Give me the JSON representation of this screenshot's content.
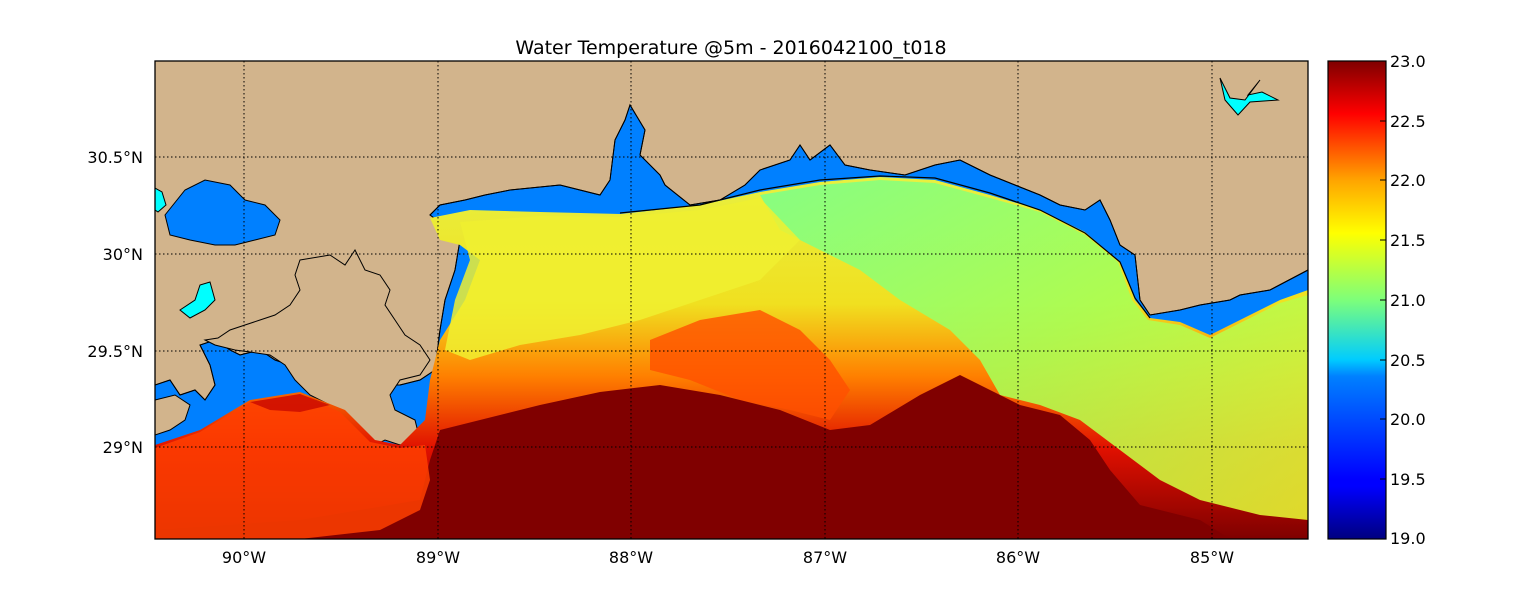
{
  "map": {
    "title": "Water Temperature @5m - 2016042100_t018",
    "lon_range": [
      -90.5,
      -84.5
    ],
    "lat_range": [
      28.55,
      31.0
    ],
    "longitude_labels": [
      "90°W",
      "89°W",
      "88°W",
      "87°W",
      "86°W",
      "85°W"
    ],
    "longitude_values": [
      -90,
      -89,
      -88,
      -87,
      -86,
      -85
    ],
    "latitude_labels": [
      "30.5°N",
      "30°N",
      "29.5°N",
      "29°N"
    ],
    "latitude_values": [
      30.5,
      30.0,
      29.5,
      29.0
    ],
    "gridlines": true,
    "colors": {
      "land": "#D2B48C",
      "water": "#0080FF",
      "lake": "#00FFFF",
      "coast": "#000000"
    },
    "colorbar": {
      "colormap": "jet",
      "min": 19.0,
      "max": 23.0,
      "tick_labels": [
        "23.0",
        "22.5",
        "22.0",
        "21.5",
        "21.0",
        "20.5",
        "20.0",
        "19.5",
        "19.0"
      ],
      "tick_values": [
        23.0,
        22.5,
        22.0,
        21.5,
        21.0,
        20.5,
        20.0,
        19.5,
        19.0
      ]
    }
  }
}
